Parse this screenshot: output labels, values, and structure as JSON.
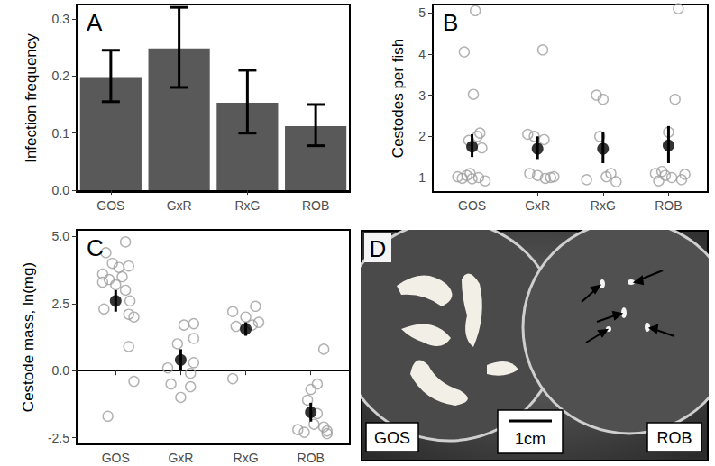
{
  "chart_data": [
    {
      "type": "bar",
      "title": "A",
      "y_label": "Infection frequency",
      "categories": [
        "GOS",
        "GxR",
        "RxG",
        "ROB"
      ],
      "values": [
        0.198,
        0.248,
        0.153,
        0.112
      ],
      "ci_low": [
        0.155,
        0.18,
        0.1,
        0.078
      ],
      "ci_high": [
        0.245,
        0.32,
        0.21,
        0.15
      ],
      "color": "#595959",
      "ylim": [
        -0.003,
        0.325
      ],
      "yticks": [
        {
          "value": 0,
          "label": "0.0"
        },
        {
          "value": 0.1,
          "label": "0.1"
        },
        {
          "value": 0.2,
          "label": "0.2"
        },
        {
          "value": 0.3,
          "label": "0.3"
        }
      ],
      "grid": false
    },
    {
      "type": "scatter",
      "title": "B",
      "y_label": "Cestodes per fish",
      "xlim": [
        0.4,
        4.6
      ],
      "xticks": [
        {
          "value": 1,
          "label": "GOS"
        },
        {
          "value": 2,
          "label": "GxR"
        },
        {
          "value": 3,
          "label": "RxG"
        },
        {
          "value": 4,
          "label": "ROB"
        }
      ],
      "points": {
        "x": [
          0.88,
          1.05,
          1.02,
          1.12,
          1.08,
          0.95,
          1.15,
          0.78,
          0.85,
          0.92,
          1.0,
          1.1,
          1.2,
          0.97,
          2.08,
          1.85,
          1.95,
          2.1,
          1.88,
          2.0,
          2.2,
          2.12,
          2.25,
          2.9,
          3.0,
          2.95,
          3.12,
          2.75,
          3.2,
          3.05,
          4.15,
          4.1,
          4.0,
          3.8,
          3.9,
          3.95,
          4.05,
          4.2,
          4.25,
          3.85
        ],
        "y": [
          4.05,
          5.05,
          3.02,
          2.08,
          2.0,
          1.9,
          1.72,
          1.02,
          0.98,
          1.05,
          0.97,
          1.0,
          0.92,
          1.1,
          4.1,
          2.05,
          2.0,
          1.92,
          1.1,
          1.05,
          1.0,
          0.98,
          1.02,
          3.0,
          2.9,
          2.0,
          1.1,
          0.95,
          0.9,
          1.02,
          5.1,
          2.9,
          2.1,
          1.1,
          1.15,
          1.05,
          1.0,
          0.95,
          1.08,
          0.92
        ]
      },
      "means": [
        1.75,
        1.7,
        1.7,
        1.78
      ],
      "ci_low": [
        1.5,
        1.45,
        1.35,
        1.35
      ],
      "ci_high": [
        2.05,
        2.0,
        2.1,
        2.25
      ],
      "color": "#9e9e9e",
      "marker": "open circle",
      "ylim": [
        0.65,
        5.2
      ],
      "yticks": [
        1,
        2,
        3,
        4,
        5
      ],
      "grid": false
    },
    {
      "type": "scatter",
      "title": "C",
      "y_label": "Cestode mass, ln(mg)",
      "xlim": [
        0.4,
        4.6
      ],
      "xticks": [
        {
          "value": 1,
          "label": "GOS"
        },
        {
          "value": 2,
          "label": "GxR"
        },
        {
          "value": 3,
          "label": "RxG"
        },
        {
          "value": 4,
          "label": "ROB"
        }
      ],
      "points": {
        "x": [
          1.15,
          0.85,
          0.95,
          1.2,
          1.05,
          0.8,
          1.1,
          0.9,
          0.8,
          1.0,
          1.15,
          1.22,
          0.82,
          1.2,
          1.28,
          1.2,
          1.28,
          0.88,
          2.2,
          2.05,
          2.2,
          1.95,
          2.2,
          1.8,
          2.15,
          1.85,
          2.15,
          2.0,
          2.8,
          3.15,
          3.0,
          3.2,
          3.1,
          2.85,
          2.8,
          4.2,
          4.1,
          4.0,
          3.95,
          4.1,
          4.05,
          4.2,
          3.8,
          4.25,
          3.9,
          4.25
        ],
        "y": [
          4.8,
          4.4,
          4.0,
          3.9,
          3.85,
          3.6,
          3.5,
          3.4,
          3.3,
          3.2,
          3.0,
          2.6,
          2.3,
          2.1,
          2.0,
          0.9,
          -0.4,
          -1.7,
          1.75,
          1.7,
          1.2,
          1.0,
          0.3,
          0.1,
          -0.1,
          -0.5,
          -0.6,
          -1.0,
          2.2,
          2.4,
          2.0,
          1.8,
          1.7,
          1.65,
          -0.3,
          0.8,
          -0.5,
          -0.7,
          -1.1,
          -1.6,
          -2.0,
          -2.1,
          -2.2,
          -2.25,
          -2.3,
          -2.35
        ]
      },
      "means": [
        2.6,
        0.4,
        1.55,
        -1.55
      ],
      "ci_low": [
        2.2,
        0.0,
        1.3,
        -1.9
      ],
      "ci_high": [
        3.0,
        0.8,
        1.8,
        -1.2
      ],
      "color": "#9e9e9e",
      "marker": "open circle",
      "ylim": [
        -2.75,
        5.25
      ],
      "yticks": [
        -2.5,
        {
          "value": 0,
          "label": "0.0"
        },
        2.5,
        {
          "value": 5,
          "label": "5.0"
        }
      ],
      "grid": false
    }
  ],
  "photo": {
    "label": "D",
    "dishes": [
      "GOS",
      "ROB"
    ],
    "scale_bar": "1cm"
  }
}
